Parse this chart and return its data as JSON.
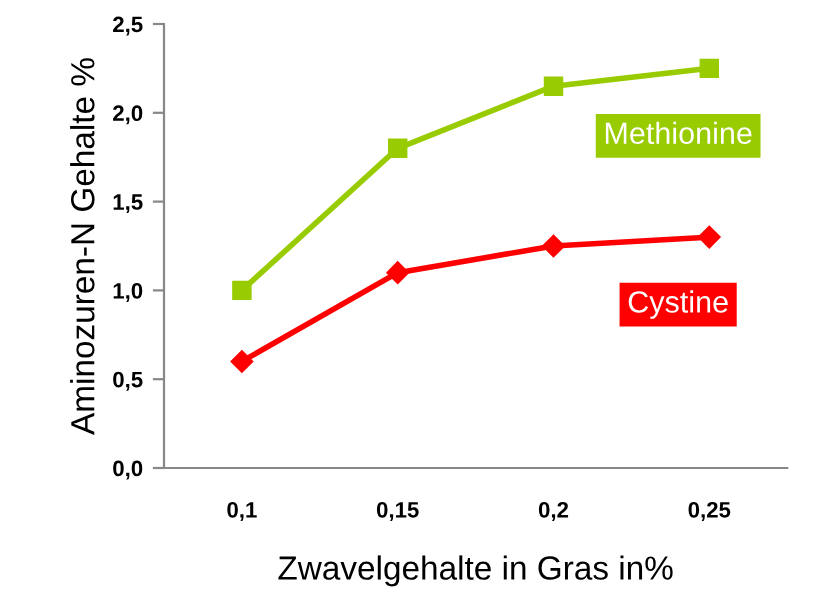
{
  "chart_data": {
    "type": "line",
    "xlabel": "Zwavelgehalte in Gras in%",
    "ylabel": "Aminozuren-N Gehalte %",
    "categories": [
      "0,1",
      "0,15",
      "0,2",
      "0,25"
    ],
    "series": [
      {
        "name": "Methionine",
        "color": "#99cc00",
        "marker": "square",
        "values": [
          1.0,
          1.8,
          2.15,
          2.25
        ]
      },
      {
        "name": "Cystine",
        "color": "#ff0000",
        "marker": "diamond",
        "values": [
          0.6,
          1.1,
          1.25,
          1.3
        ]
      }
    ],
    "ylim": [
      0,
      2.5
    ],
    "yticks": [
      {
        "value": 0,
        "label": "0,0"
      },
      {
        "value": 0.5,
        "label": "0,5"
      },
      {
        "value": 1.0,
        "label": "1,0"
      },
      {
        "value": 1.5,
        "label": "1,5"
      },
      {
        "value": 2.0,
        "label": "2,0"
      },
      {
        "value": 2.5,
        "label": "2,5"
      }
    ],
    "grid": false,
    "legend": false,
    "line_style": "solid"
  }
}
